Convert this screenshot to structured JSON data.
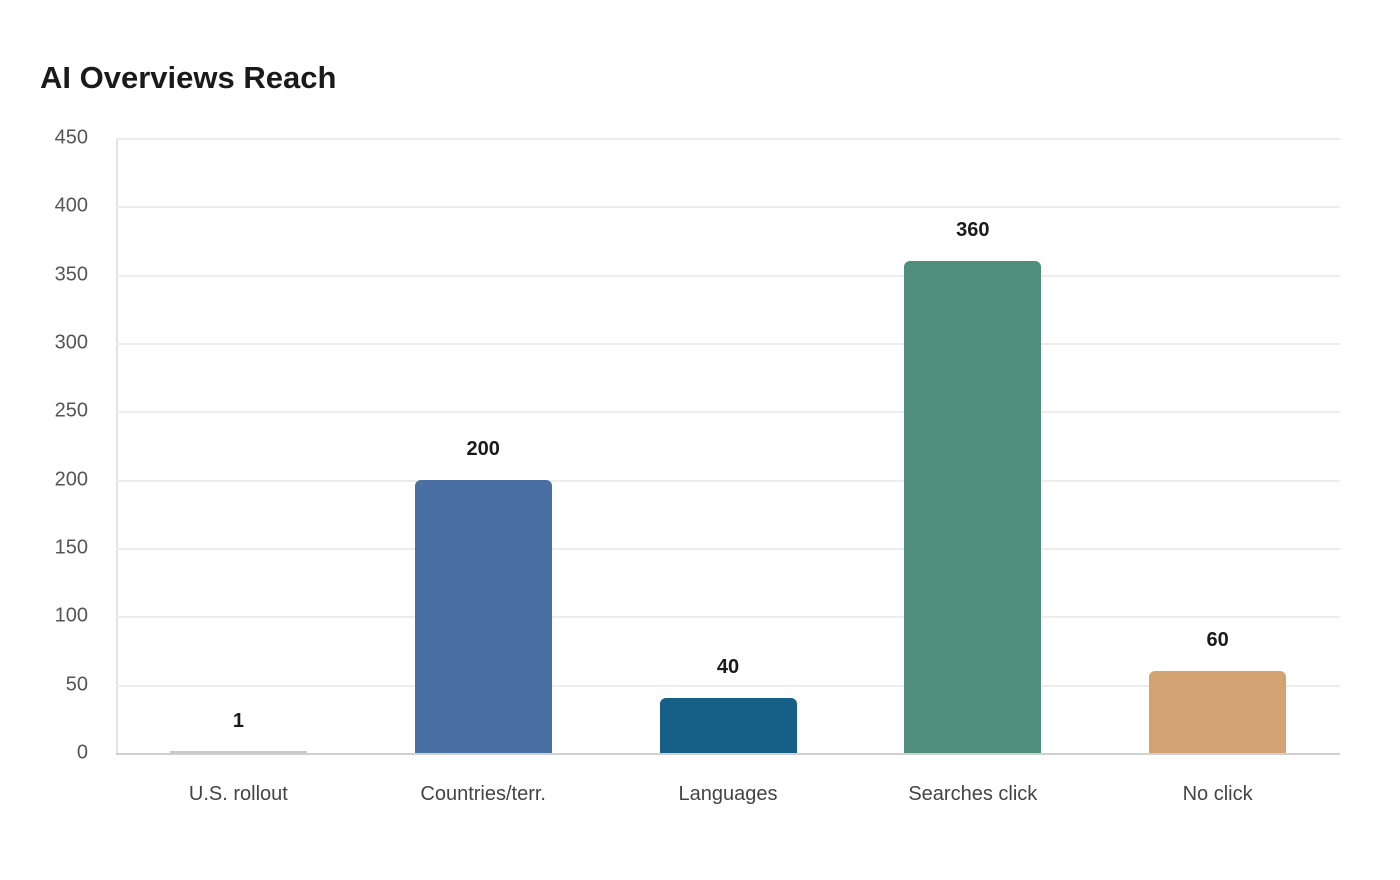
{
  "title": "AI Overviews Reach",
  "y_ticks": [
    "0",
    "50",
    "100",
    "150",
    "200",
    "250",
    "300",
    "350",
    "400",
    "450"
  ],
  "chart_data": {
    "type": "bar",
    "title": "AI Overviews Reach",
    "categories": [
      "U.S. rollout",
      "Countries/terr.",
      "Languages",
      "Searches click",
      "No click"
    ],
    "values": [
      1,
      200,
      40,
      360,
      60
    ],
    "colors": [
      "#c8c8c8",
      "#4a6fa5",
      "#166088",
      "#4f8d7c",
      "#d4a373"
    ],
    "xlabel": "",
    "ylabel": "",
    "ylim": [
      0,
      450
    ],
    "yticks": [
      0,
      50,
      100,
      150,
      200,
      250,
      300,
      350,
      400,
      450
    ],
    "grid": true,
    "legend": "none",
    "data_labels": [
      "1",
      "200",
      "40",
      "360",
      "60"
    ]
  }
}
